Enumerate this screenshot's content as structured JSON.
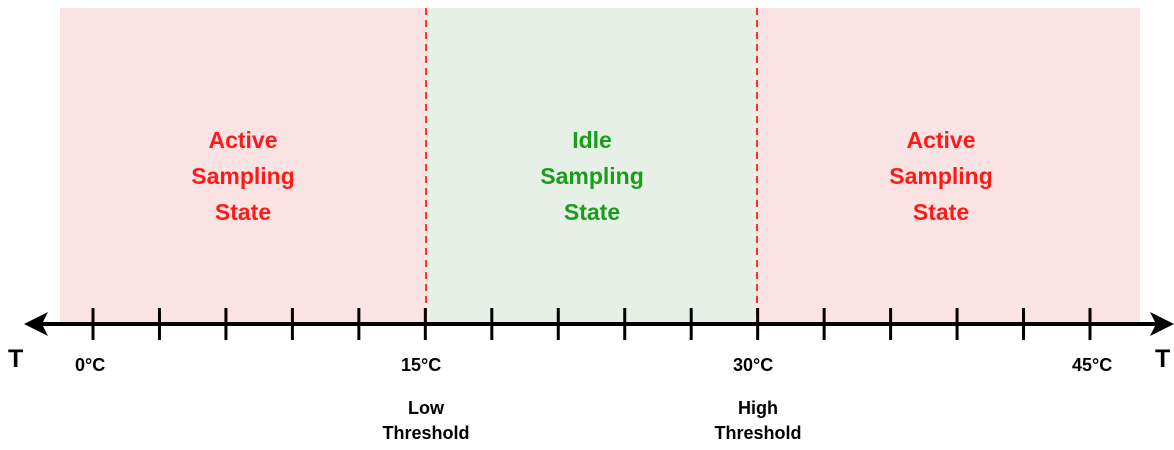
{
  "colors": {
    "active_zone_fill": "#fbe3e3",
    "idle_zone_fill": "#e6f0e6",
    "active_text": "#ff1a1a",
    "idle_text": "#1a9e1a",
    "threshold_line": "#ff3333",
    "axis": "#000000"
  },
  "zones": {
    "left": {
      "label": "Active\nSampling\nState"
    },
    "middle": {
      "label": "Idle\nSampling\nState"
    },
    "right": {
      "label": "Active\nSampling\nState"
    }
  },
  "axis": {
    "end_label_left": "T",
    "end_label_right": "T",
    "tick_labels": [
      "0°C",
      "15°C",
      "30°C",
      "45°C"
    ],
    "tick_count": 16,
    "range_celsius": [
      0,
      45
    ],
    "thresholds": [
      {
        "value_celsius": 15,
        "label": "Low\nThreshold"
      },
      {
        "value_celsius": 30,
        "label": "High\nThreshold"
      }
    ]
  }
}
